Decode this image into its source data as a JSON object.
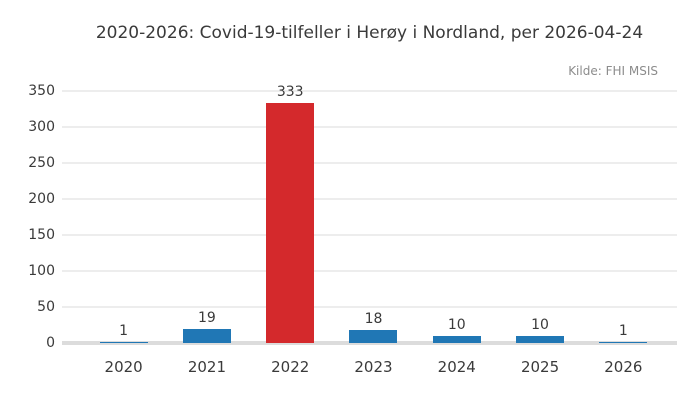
{
  "chart_data": {
    "type": "bar",
    "title": "2020-2026: Covid-19-tilfeller i Herøy i Nordland, per 2026-04-24",
    "source": "Kilde: FHI MSIS",
    "categories": [
      "2020",
      "2021",
      "2022",
      "2023",
      "2024",
      "2025",
      "2026"
    ],
    "values": [
      1,
      19,
      333,
      18,
      10,
      10,
      1
    ],
    "bar_colors": [
      "#2077b5",
      "#2077b5",
      "#d4292c",
      "#2077b5",
      "#2077b5",
      "#2077b5",
      "#2077b5"
    ],
    "xlabel": "",
    "ylabel": "",
    "ylim": [
      0,
      350
    ],
    "yticks": [
      0,
      50,
      100,
      150,
      200,
      250,
      300,
      350
    ],
    "grid": true,
    "legend": "none",
    "colors": {
      "default_bar": "#2077b5",
      "highlight_bar": "#d4292c",
      "gridline": "#ededed",
      "axis_line": "#dcdcdc",
      "text": "#3a3a3a",
      "source_text": "#8c8c8c",
      "background": "#ffffff"
    }
  }
}
